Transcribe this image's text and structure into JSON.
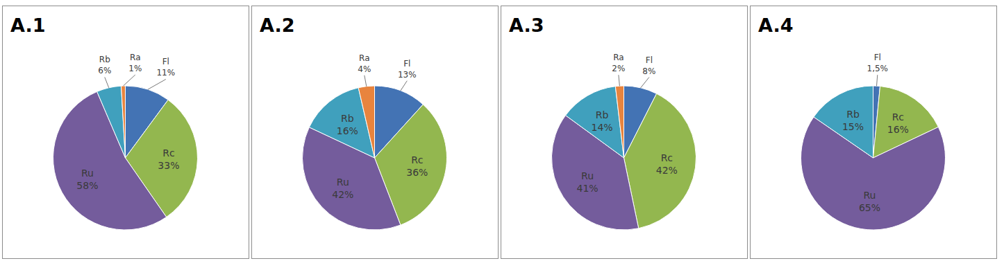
{
  "chart_data": [
    {
      "type": "pie",
      "title": "A.1",
      "categories": [
        "Fl",
        "Rc",
        "Ru",
        "Rb",
        "Ra"
      ],
      "values": [
        11,
        33,
        58,
        6,
        1
      ],
      "value_labels": [
        "11%",
        "33%",
        "58%",
        "6%",
        "1%"
      ],
      "colors": [
        "#4373b4",
        "#93b74f",
        "#745c9c",
        "#40a0bd",
        "#e8843e"
      ],
      "data_labels": true
    },
    {
      "type": "pie",
      "title": "A.2",
      "categories": [
        "Fl",
        "Rc",
        "Ru",
        "Rb",
        "Ra"
      ],
      "values": [
        13,
        36,
        42,
        16,
        4
      ],
      "value_labels": [
        "13%",
        "36%",
        "42%",
        "16%",
        "4%"
      ],
      "colors": [
        "#4373b4",
        "#93b74f",
        "#745c9c",
        "#40a0bd",
        "#e8843e"
      ],
      "data_labels": true
    },
    {
      "type": "pie",
      "title": "A.3",
      "categories": [
        "Fl",
        "Rc",
        "Ru",
        "Rb",
        "Ra"
      ],
      "values": [
        8,
        42,
        41,
        14,
        2
      ],
      "value_labels": [
        "8%",
        "42%",
        "41%",
        "14%",
        "2%"
      ],
      "colors": [
        "#4373b4",
        "#93b74f",
        "#745c9c",
        "#40a0bd",
        "#e8843e"
      ],
      "data_labels": true
    },
    {
      "type": "pie",
      "title": "A.4",
      "categories": [
        "Fl",
        "Rc",
        "Ru",
        "Rb"
      ],
      "values": [
        1.5,
        16,
        65,
        15
      ],
      "value_labels": [
        "1,5%",
        "16%",
        "65%",
        "15%"
      ],
      "colors": [
        "#4373b4",
        "#93b74f",
        "#745c9c",
        "#40a0bd"
      ],
      "data_labels": true
    }
  ]
}
